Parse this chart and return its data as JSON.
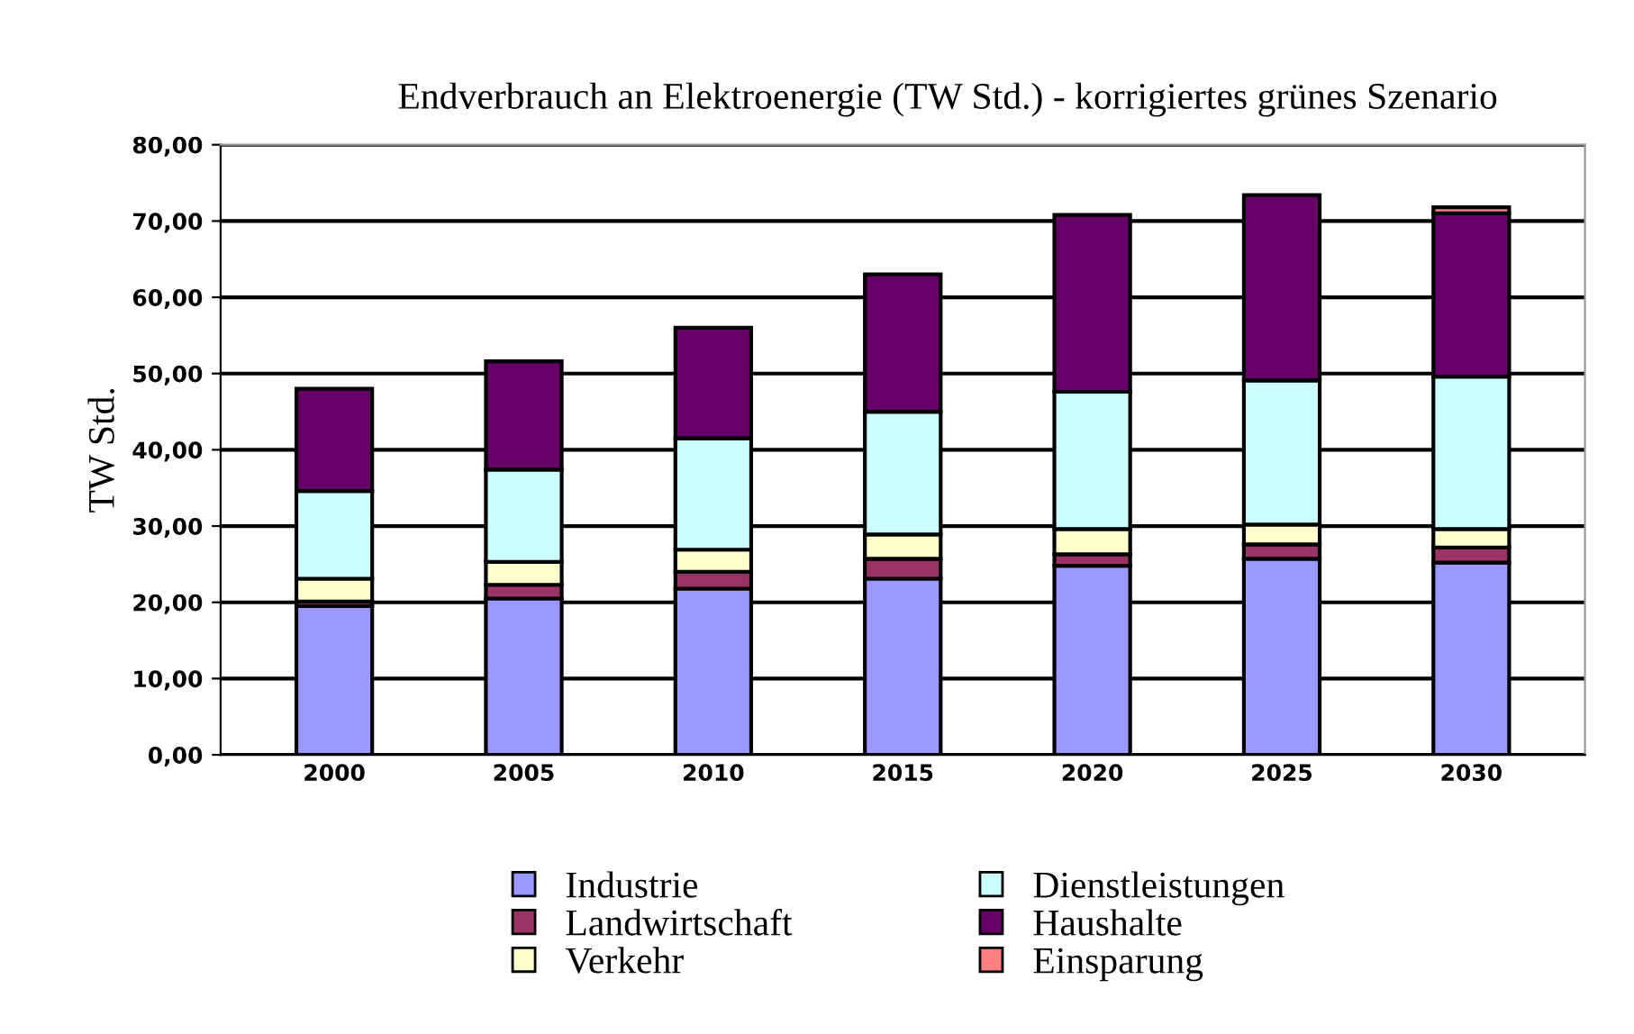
{
  "chart_data": {
    "type": "bar",
    "stacked": true,
    "title": "Endverbrauch an Elektroenergie (TW Std.) - korrigiertes grünes Szenario",
    "ylabel": "TW Std.",
    "categories": [
      "2000",
      "2005",
      "2010",
      "2015",
      "2020",
      "2025",
      "2030"
    ],
    "series": [
      {
        "name": "Industrie",
        "color": "#9999ff",
        "values": [
          19.5,
          20.5,
          21.8,
          23.1,
          24.8,
          25.7,
          25.2
        ]
      },
      {
        "name": "Landwirtschaft",
        "color": "#993366",
        "values": [
          0.6,
          1.8,
          2.2,
          2.6,
          1.5,
          1.9,
          2.0
        ]
      },
      {
        "name": "Verkehr",
        "color": "#ffffcc",
        "values": [
          3.0,
          3.0,
          2.9,
          3.2,
          3.3,
          2.6,
          2.4
        ]
      },
      {
        "name": "Dienstleistungen",
        "color": "#ccffff",
        "values": [
          11.5,
          12.1,
          14.6,
          16.1,
          18.0,
          18.9,
          20.0
        ]
      },
      {
        "name": "Haushalte",
        "color": "#660066",
        "values": [
          13.4,
          14.2,
          14.5,
          18.0,
          23.2,
          24.3,
          21.4
        ]
      },
      {
        "name": "Einsparung",
        "color": "#ff8080",
        "values": [
          null,
          null,
          null,
          null,
          null,
          null,
          0.8
        ]
      }
    ],
    "ylim": [
      0,
      80
    ],
    "yticks": [
      {
        "value": 0,
        "label": "0,00"
      },
      {
        "value": 10,
        "label": "10,00"
      },
      {
        "value": 20,
        "label": "20,00"
      },
      {
        "value": 30,
        "label": "30,00"
      },
      {
        "value": 40,
        "label": "40,00"
      },
      {
        "value": 50,
        "label": "50,00"
      },
      {
        "value": 60,
        "label": "60,00"
      },
      {
        "value": 70,
        "label": "70,00"
      },
      {
        "value": 80,
        "label": "80,00"
      }
    ],
    "grid": "y",
    "legend": "bottom"
  }
}
